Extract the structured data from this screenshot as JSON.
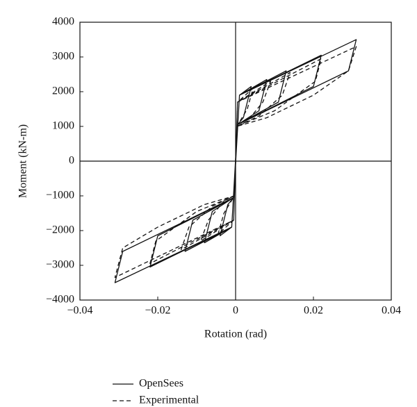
{
  "chart_data": {
    "type": "line",
    "x_label": "Rotation (rad)",
    "y_label": "Moment (kN-m)",
    "xlim": [
      -0.04,
      0.04
    ],
    "ylim": [
      -4000,
      4000
    ],
    "xticks": [
      {
        "value": -0.04,
        "label": "−0.04"
      },
      {
        "value": -0.02,
        "label": "−0.02"
      },
      0,
      0.02,
      0.04
    ],
    "yticks": [
      {
        "value": -4000,
        "label": "−4000"
      },
      {
        "value": -3000,
        "label": "−3000"
      },
      {
        "value": -2000,
        "label": "−2000"
      },
      {
        "value": -1000,
        "label": "−1000"
      },
      0,
      1000,
      2000,
      3000,
      4000
    ],
    "zero_lines": true,
    "legend": "bottom-left",
    "series": [
      {
        "name": "OpenSees",
        "color": "#111111",
        "line_style": "solid",
        "x": [
          0,
          0.001,
          0.004,
          0.002,
          0.0005,
          -0.001,
          -0.004,
          -0.002,
          -0.0005,
          0.001,
          0.008,
          0.006,
          0.0005,
          -0.001,
          -0.008,
          -0.006,
          -0.0005,
          0.001,
          0.013,
          0.011,
          0.0005,
          -0.001,
          -0.013,
          -0.011,
          -0.0005,
          0.001,
          0.022,
          0.02,
          0.0005,
          -0.001,
          -0.022,
          -0.02,
          -0.0005,
          0.001,
          0.031,
          0.029,
          0.0005,
          -0.001,
          -0.031,
          -0.029,
          -0.0005
        ],
        "values": [
          0,
          1900,
          2150,
          1250,
          1050,
          -1900,
          -2150,
          -1250,
          -1050,
          1900,
          2350,
          1450,
          1050,
          -1900,
          -2350,
          -1450,
          -1050,
          1900,
          2600,
          1700,
          1050,
          -1900,
          -2600,
          -1700,
          -1050,
          1900,
          3050,
          2150,
          1050,
          -1900,
          -3050,
          -2150,
          -1050,
          1900,
          3500,
          2600,
          1050,
          -1900,
          -3500,
          -2600,
          -1050
        ]
      },
      {
        "name": "Experimental",
        "color": "#111111",
        "line_style": "dashed",
        "x": [
          0,
          0.0005,
          0.0045,
          0.003,
          0.0003,
          -0.0005,
          -0.0045,
          -0.003,
          -0.0003,
          0.0005,
          0.009,
          0.007,
          0.003,
          0.0003,
          -0.0005,
          -0.009,
          -0.007,
          -0.003,
          -0.0003,
          0.0005,
          0.014,
          0.012,
          0.006,
          0.0003,
          -0.0005,
          -0.014,
          -0.012,
          -0.006,
          -0.0003,
          0.0005,
          0.022,
          0.0205,
          0.01,
          0.0003,
          -0.0005,
          -0.022,
          -0.0205,
          -0.01,
          -0.0003,
          0.0005,
          0.031,
          0.029,
          0.02,
          0.008,
          0.0003,
          -0.0005,
          -0.031,
          -0.029,
          -0.02,
          -0.008,
          -0.0003
        ],
        "values": [
          0,
          1700,
          2100,
          1500,
          1000,
          -1700,
          -2100,
          -1500,
          -1000,
          1700,
          2300,
          1700,
          1150,
          1000,
          -1700,
          -2300,
          -1700,
          -1150,
          -1000,
          1700,
          2550,
          1900,
          1300,
          1000,
          -1700,
          -2550,
          -1900,
          -1300,
          -1000,
          1700,
          2950,
          2300,
          1450,
          1000,
          -1700,
          -2950,
          -2300,
          -1450,
          -1000,
          1700,
          3300,
          2600,
          1900,
          1250,
          1000,
          -1700,
          -3350,
          -2500,
          -1900,
          -1250,
          -1000
        ]
      }
    ]
  }
}
